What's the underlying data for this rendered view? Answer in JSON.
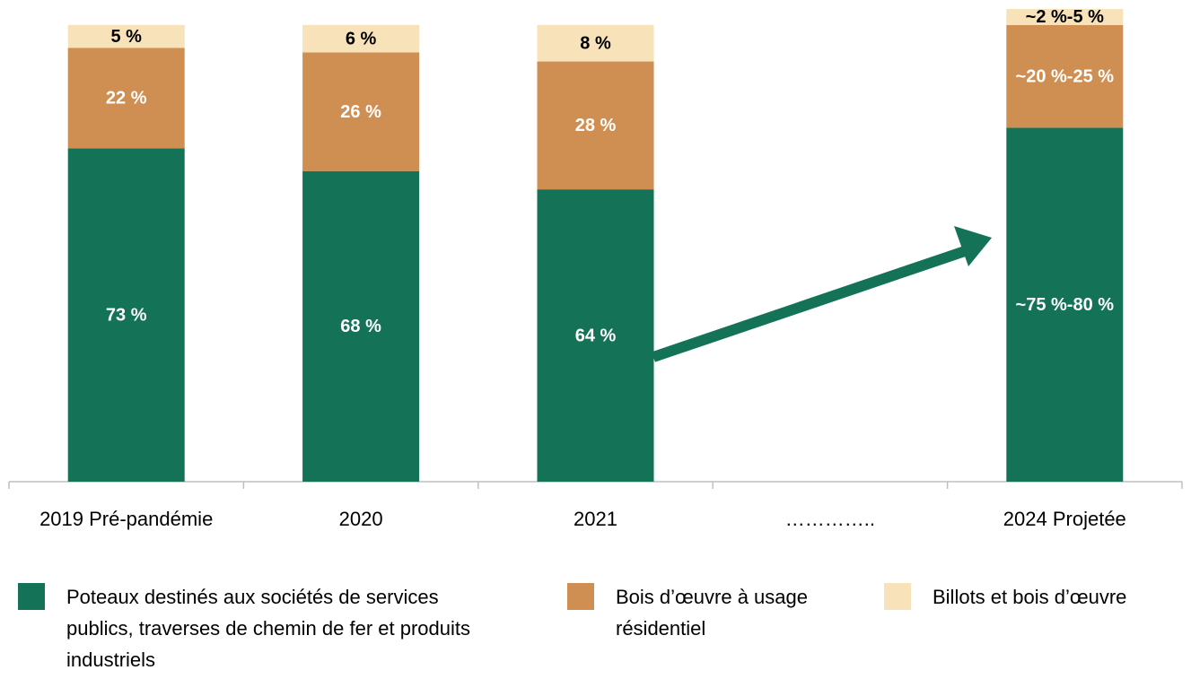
{
  "chart_data": {
    "type": "stacked_bar",
    "categories": [
      "2019 Pré-pandémie",
      "2020",
      "2021",
      "…………..",
      "2024 Projetée"
    ],
    "series": [
      {
        "name": "Poteaux destinés aux sociétés de services publics, traverses de chemin de fer et produits industriels",
        "color": "#147256",
        "label_color": "#ffffff",
        "values": [
          73,
          68,
          64,
          null,
          77.5
        ],
        "value_labels": [
          "73 %",
          "68 %",
          "64 %",
          null,
          "~75 %-80 %"
        ]
      },
      {
        "name": "Bois d’œuvre à usage résidentiel",
        "color": "#cf8e52",
        "label_color": "#ffffff",
        "values": [
          22,
          26,
          28,
          null,
          22.5
        ],
        "value_labels": [
          "22 %",
          "26 %",
          "28 %",
          null,
          "~20 %-25 %"
        ]
      },
      {
        "name": "Billots et bois d’œuvre",
        "color": "#f8e2b9",
        "label_color": "#000000",
        "values": [
          5,
          6,
          8,
          null,
          3.5
        ],
        "value_labels": [
          "5 %",
          "6 %",
          "8 %",
          null,
          "~2 %-5 %"
        ]
      }
    ]
  }
}
